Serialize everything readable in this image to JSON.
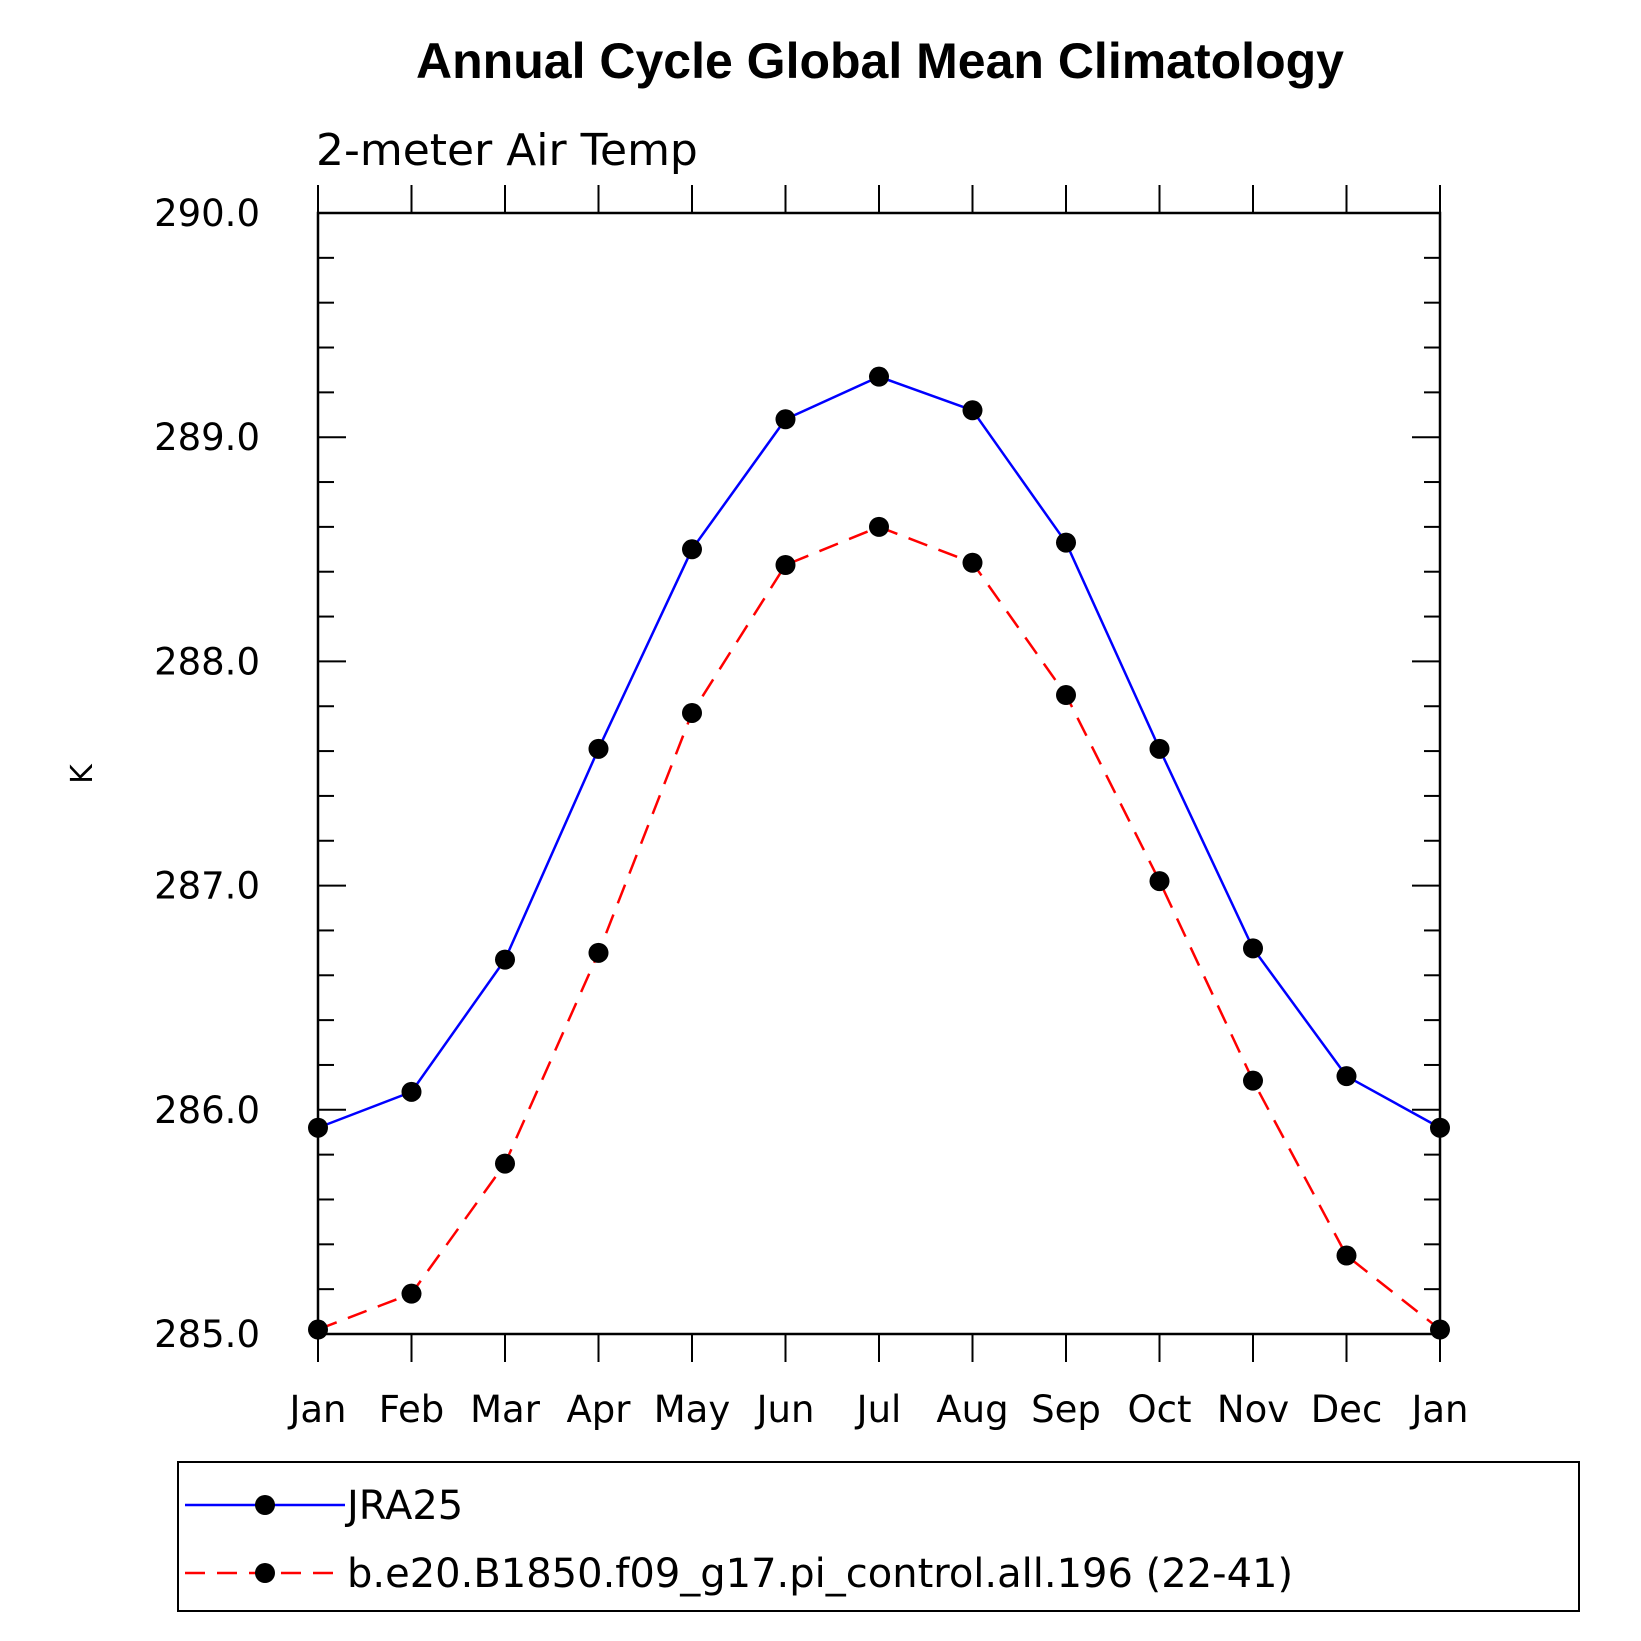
{
  "chart_data": {
    "type": "line",
    "title": "Annual Cycle Global Mean Climatology",
    "subtitle": "2-meter Air Temp",
    "xlabel": "",
    "ylabel": "K",
    "categories": [
      "Jan",
      "Feb",
      "Mar",
      "Apr",
      "May",
      "Jun",
      "Jul",
      "Aug",
      "Sep",
      "Oct",
      "Nov",
      "Dec",
      "Jan"
    ],
    "ylim": [
      285.0,
      290.0
    ],
    "yticks": [
      285.0,
      286.0,
      287.0,
      288.0,
      289.0,
      290.0
    ],
    "ytick_labels": [
      "285.0",
      "286.0",
      "287.0",
      "288.0",
      "289.0",
      "290.0"
    ],
    "grid": false,
    "legend_position": "bottom",
    "series": [
      {
        "name": "JRA25",
        "color": "#0000ff",
        "line_style": "solid",
        "marker": "filled-circle",
        "values": [
          285.92,
          286.08,
          286.67,
          287.61,
          288.5,
          289.08,
          289.27,
          289.12,
          288.53,
          287.61,
          286.72,
          286.15,
          285.92
        ]
      },
      {
        "name": "b.e20.B1850.f09_g17.pi_control.all.196 (22-41)",
        "color": "#ff0000",
        "line_style": "dashed",
        "marker": "filled-circle",
        "values": [
          285.02,
          285.18,
          285.76,
          286.7,
          287.77,
          288.43,
          288.6,
          288.44,
          287.85,
          287.02,
          286.13,
          285.35,
          285.02
        ]
      }
    ]
  }
}
